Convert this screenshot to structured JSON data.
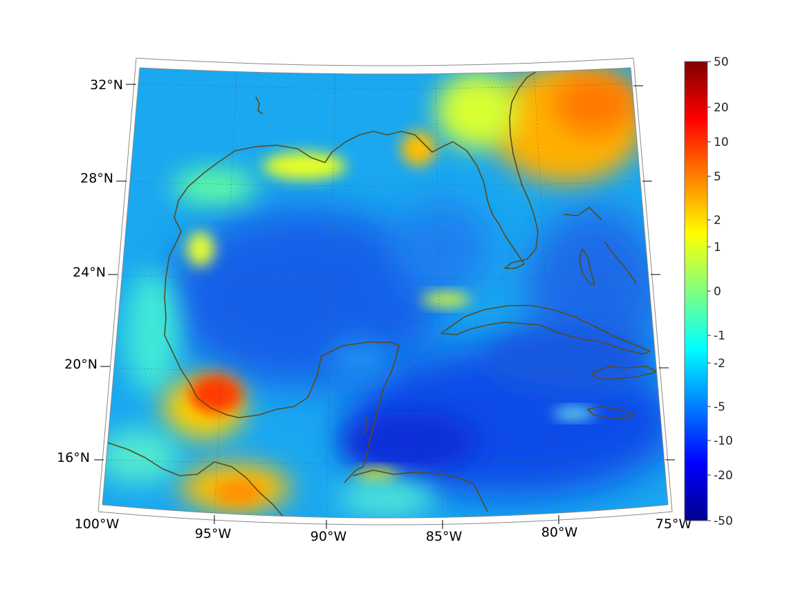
{
  "map": {
    "projection": "lambert-conic",
    "region": "Gulf of Mexico and Caribbean",
    "lon_range": [
      -100,
      -75
    ],
    "lat_range": [
      14,
      33
    ],
    "grid": true,
    "coastline_color": "#5a4a1a",
    "lat_labels": [
      "32°N",
      "28°N",
      "24°N",
      "20°N",
      "16°N"
    ],
    "lon_labels": [
      "100°W",
      "95°W",
      "90°W",
      "85°W",
      "80°W",
      "75°W"
    ]
  },
  "colorbar": {
    "colormap": "jet",
    "scale": "symmetric-log",
    "ticks": [
      "50",
      "20",
      "10",
      "5",
      "2",
      "1",
      "0",
      "-1",
      "-2",
      "-5",
      "-10",
      "-20",
      "-50"
    ]
  },
  "highlights": [
    {
      "name": "bay-of-campeche-high",
      "level": "10"
    },
    {
      "name": "florida-georgia-high",
      "level": "5"
    },
    {
      "name": "central-america-high",
      "level": "2"
    },
    {
      "name": "north-gulf-coast-high",
      "level": "1"
    },
    {
      "name": "cuba-north-patch",
      "level": "1"
    },
    {
      "name": "yucatan-channel-low",
      "level": "-20"
    },
    {
      "name": "caribbean-low",
      "level": "-10"
    }
  ]
}
